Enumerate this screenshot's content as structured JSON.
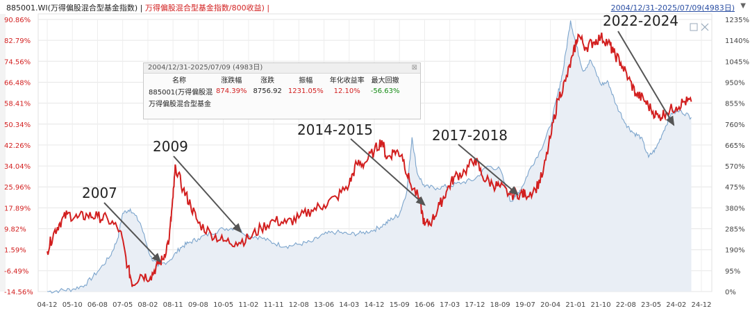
{
  "header": {
    "index_title": "885001.WI(万得偏股混合型基金指数) | ",
    "overlay_title": "万得偏股混合型基金指数/800收益) |",
    "date_range": "2004/12/31-2025/07/09(4983日)",
    "dropdown_icon": "triangle-down-icon"
  },
  "stats_panel": {
    "title": "2004/12/31-2025/07/09 (4983日)",
    "close_icon": "close-box-icon",
    "columns": [
      "名称",
      "涨跌幅",
      "涨跌",
      "振幅",
      "年化收益率",
      "最大回撤"
    ],
    "rows": [
      [
        "885001(万得偏股混",
        "874.39%",
        "8756.92",
        "1231.05%",
        "12.10%",
        "-56.63%"
      ],
      [
        "万得偏股混合型基金",
        "",
        "",
        "",
        "",
        ""
      ]
    ]
  },
  "colors": {
    "ratio_line": "#d21f1f",
    "index_line": "#7ba4cc",
    "index_fill": "#e9eef5",
    "left_axis": "#d21f1f",
    "arrow": "#555555"
  },
  "chart_data": {
    "type": "line",
    "left_axis_ticks": [
      "90.86%",
      "82.79%",
      "74.56%",
      "66.48%",
      "58.41%",
      "50.34%",
      "42.26%",
      "34.04%",
      "25.96%",
      "17.89%",
      "9.82%",
      "1.59%",
      "-6.49%",
      "-14.56%"
    ],
    "right_axis_ticks": [
      "1235%",
      "1140%",
      "1045%",
      "950%",
      "855%",
      "760%",
      "665%",
      "570%",
      "475%",
      "380%",
      "285%",
      "190%",
      "95%",
      "0%"
    ],
    "x_tick_labels": [
      "04-12",
      "05-10",
      "06-08",
      "07-05",
      "08-02",
      "08-11",
      "09-08",
      "10-05",
      "11-02",
      "11-11",
      "12-08",
      "13-06",
      "14-03",
      "14-12",
      "15-09",
      "16-06",
      "17-03",
      "17-12",
      "18-09",
      "19-07",
      "20-04",
      "21-01",
      "21-10",
      "22-08",
      "23-05",
      "24-02",
      "24-12"
    ],
    "ylim_left": [
      -14.56,
      90.86
    ],
    "ylim_right": [
      0,
      1235
    ],
    "series": [
      {
        "name": "万得偏股混合型基金指数/800收益",
        "axis": "left",
        "points": [
          [
            0,
            1.0
          ],
          [
            0.25,
            8.0
          ],
          [
            0.5,
            12.0
          ],
          [
            0.8,
            15.5
          ],
          [
            1.2,
            14.0
          ],
          [
            1.6,
            15.0
          ],
          [
            2.0,
            14.5
          ],
          [
            2.4,
            13.5
          ],
          [
            2.9,
            9.0
          ],
          [
            3.2,
            -5.0
          ],
          [
            3.4,
            -12.0
          ],
          [
            3.7,
            -8.0
          ],
          [
            4.1,
            -9.0
          ],
          [
            4.4,
            -4.0
          ],
          [
            4.6,
            -2.0
          ],
          [
            4.85,
            6.0
          ],
          [
            5.0,
            22.0
          ],
          [
            5.1,
            34.0
          ],
          [
            5.4,
            25.0
          ],
          [
            5.7,
            19.0
          ],
          [
            6.0,
            12.0
          ],
          [
            6.5,
            8.0
          ],
          [
            7.0,
            5.0
          ],
          [
            7.5,
            4.5
          ],
          [
            8.0,
            6.0
          ],
          [
            8.5,
            10.0
          ],
          [
            9.0,
            13.0
          ],
          [
            9.5,
            12.0
          ],
          [
            10.0,
            14.0
          ],
          [
            10.5,
            17.0
          ],
          [
            11.0,
            19.0
          ],
          [
            11.5,
            22.0
          ],
          [
            12.0,
            27.0
          ],
          [
            12.3,
            35.0
          ],
          [
            12.6,
            35.0
          ],
          [
            13.0,
            40.0
          ],
          [
            13.3,
            44.0
          ],
          [
            13.5,
            37.0
          ],
          [
            13.8,
            40.0
          ],
          [
            14.1,
            38.5
          ],
          [
            14.4,
            28.0
          ],
          [
            14.8,
            21.0
          ],
          [
            15.0,
            11.0
          ],
          [
            15.3,
            13.0
          ],
          [
            15.6,
            19.0
          ],
          [
            15.9,
            25.0
          ],
          [
            16.2,
            30.0
          ],
          [
            16.6,
            32.0
          ],
          [
            17.0,
            37.0
          ],
          [
            17.3,
            30.0
          ],
          [
            17.7,
            27.0
          ],
          [
            18.0,
            26.0
          ],
          [
            18.4,
            23.0
          ],
          [
            18.8,
            23.5
          ],
          [
            19.0,
            23.0
          ],
          [
            19.4,
            25.0
          ],
          [
            19.7,
            31.0
          ],
          [
            20.0,
            45.0
          ],
          [
            20.3,
            60.0
          ],
          [
            20.6,
            67.0
          ],
          [
            20.9,
            77.0
          ],
          [
            21.1,
            85.0
          ],
          [
            21.4,
            80.0
          ],
          [
            21.7,
            82.0
          ],
          [
            22.0,
            84.0
          ],
          [
            22.3,
            82.0
          ],
          [
            22.5,
            78.0
          ],
          [
            22.8,
            74.0
          ],
          [
            23.1,
            68.0
          ],
          [
            23.4,
            62.0
          ],
          [
            23.7,
            60.0
          ],
          [
            24.0,
            56.0
          ],
          [
            24.3,
            53.0
          ],
          [
            24.6,
            55.0
          ],
          [
            25.0,
            57.0
          ],
          [
            25.3,
            59.0
          ],
          [
            25.6,
            59.0
          ]
        ]
      },
      {
        "name": "885001.WI(万得偏股混合型基金指数)",
        "axis": "right",
        "points": [
          [
            0,
            0
          ],
          [
            0.5,
            5
          ],
          [
            1.0,
            10
          ],
          [
            1.5,
            30
          ],
          [
            2.0,
            90
          ],
          [
            2.5,
            160
          ],
          [
            2.8,
            240
          ],
          [
            3.0,
            355
          ],
          [
            3.3,
            375
          ],
          [
            3.7,
            310
          ],
          [
            4.1,
            160
          ],
          [
            4.4,
            115
          ],
          [
            4.9,
            145
          ],
          [
            5.3,
            200
          ],
          [
            5.6,
            220
          ],
          [
            6.0,
            240
          ],
          [
            6.5,
            265
          ],
          [
            7.0,
            285
          ],
          [
            7.5,
            290
          ],
          [
            8.0,
            255
          ],
          [
            8.5,
            245
          ],
          [
            9.0,
            220
          ],
          [
            9.5,
            205
          ],
          [
            10.0,
            215
          ],
          [
            10.5,
            225
          ],
          [
            11.0,
            260
          ],
          [
            11.5,
            270
          ],
          [
            12.0,
            260
          ],
          [
            12.5,
            265
          ],
          [
            13.0,
            280
          ],
          [
            13.4,
            305
          ],
          [
            13.7,
            330
          ],
          [
            14.0,
            350
          ],
          [
            14.3,
            460
          ],
          [
            14.5,
            700
          ],
          [
            14.7,
            540
          ],
          [
            15.0,
            475
          ],
          [
            15.5,
            470
          ],
          [
            16.0,
            480
          ],
          [
            16.5,
            495
          ],
          [
            17.0,
            510
          ],
          [
            17.5,
            570
          ],
          [
            18.0,
            555
          ],
          [
            18.4,
            410
          ],
          [
            18.6,
            430
          ],
          [
            18.9,
            480
          ],
          [
            19.2,
            560
          ],
          [
            19.6,
            640
          ],
          [
            20.0,
            750
          ],
          [
            20.3,
            900
          ],
          [
            20.5,
            1000
          ],
          [
            20.8,
            1230
          ],
          [
            21.0,
            1130
          ],
          [
            21.3,
            1000
          ],
          [
            21.6,
            1050
          ],
          [
            22.0,
            940
          ],
          [
            22.3,
            950
          ],
          [
            22.6,
            850
          ],
          [
            23.0,
            760
          ],
          [
            23.3,
            720
          ],
          [
            23.6,
            700
          ],
          [
            23.9,
            610
          ],
          [
            24.2,
            650
          ],
          [
            24.5,
            730
          ],
          [
            24.8,
            810
          ],
          [
            25.2,
            820
          ],
          [
            25.6,
            790
          ]
        ]
      }
    ],
    "annotations": [
      {
        "label": "2007",
        "x": 4.5,
        "y": -3.0
      },
      {
        "label": "2009",
        "x": 7.7,
        "y": 8.5
      },
      {
        "label": "2014-2015",
        "x": 15.0,
        "y": 19.0
      },
      {
        "label": "2017-2018",
        "x": 18.7,
        "y": 23.0
      },
      {
        "label": "2022-2024",
        "x": 24.9,
        "y": 50.0
      }
    ],
    "grid": true,
    "legend": "none"
  }
}
